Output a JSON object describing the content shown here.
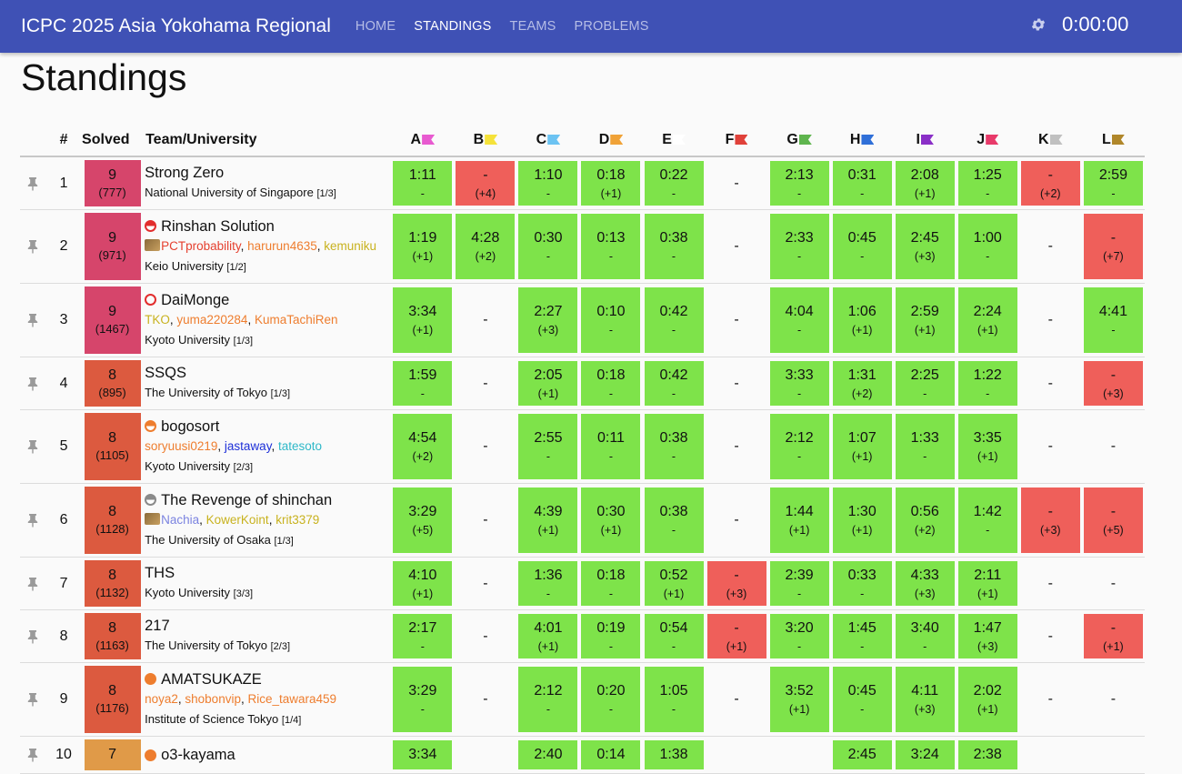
{
  "app": {
    "title": "ICPC 2025 Asia Yokohama Regional",
    "nav": [
      {
        "label": "HOME",
        "active": false
      },
      {
        "label": "STANDINGS",
        "active": true
      },
      {
        "label": "TEAMS",
        "active": false
      },
      {
        "label": "PROBLEMS",
        "active": false
      }
    ],
    "clock": "0:00:00",
    "settings_icon": "gear-icon"
  },
  "page": {
    "title": "Standings"
  },
  "table": {
    "headers": {
      "rank": "#",
      "solved": "Solved",
      "team": "Team/University"
    },
    "problems": [
      {
        "label": "A",
        "color": "#e85ad0"
      },
      {
        "label": "B",
        "color": "#f5e23a"
      },
      {
        "label": "C",
        "color": "#6cc3f2"
      },
      {
        "label": "D",
        "color": "#f0a237"
      },
      {
        "label": "E",
        "color": "#ffffff"
      },
      {
        "label": "F",
        "color": "#e0413a"
      },
      {
        "label": "G",
        "color": "#5fb54e"
      },
      {
        "label": "H",
        "color": "#2f6fd8"
      },
      {
        "label": "I",
        "color": "#8a2fc7"
      },
      {
        "label": "J",
        "color": "#e83a6a"
      },
      {
        "label": "K",
        "color": "#c0c0c0"
      },
      {
        "label": "L",
        "color": "#b0872a"
      }
    ],
    "pin_icon": "pushpin-icon",
    "rows": [
      {
        "rank": "1",
        "solved": "9",
        "penalty": "(777)",
        "solved_color": "#d6456b",
        "team": "Strong Zero",
        "dot": null,
        "members": [],
        "university": "National University of Singapore",
        "fraction": "[1/3]",
        "cells": [
          [
            "ac",
            "1:11",
            "-"
          ],
          [
            "wa",
            "-",
            "(+4)"
          ],
          [
            "ac",
            "1:10",
            "-"
          ],
          [
            "ac",
            "0:18",
            "(+1)"
          ],
          [
            "ac",
            "0:22",
            "-"
          ],
          [
            "none",
            "-",
            ""
          ],
          [
            "ac",
            "2:13",
            "-"
          ],
          [
            "ac",
            "0:31",
            "-"
          ],
          [
            "ac",
            "2:08",
            "(+1)"
          ],
          [
            "ac",
            "1:25",
            "-"
          ],
          [
            "wa",
            "-",
            "(+2)"
          ],
          [
            "ac",
            "2:59",
            "-"
          ]
        ]
      },
      {
        "rank": "2",
        "solved": "9",
        "penalty": "(971)",
        "solved_color": "#d6456b",
        "team": "Rinshan Solution",
        "dot": {
          "kind": "half",
          "color": "#e22d2d"
        },
        "members_icon": "team-badge-icon",
        "members": [
          {
            "name": "PCTprobability",
            "color": "#e5402f"
          },
          {
            "name": "harurun4635",
            "color": "#ee7d2e"
          },
          {
            "name": "kemuniku",
            "color": "#c8b21e"
          }
        ],
        "university": "Keio University",
        "fraction": "[1/2]",
        "cells": [
          [
            "ac",
            "1:19",
            "(+1)"
          ],
          [
            "ac",
            "4:28",
            "(+2)"
          ],
          [
            "ac",
            "0:30",
            "-"
          ],
          [
            "ac",
            "0:13",
            "-"
          ],
          [
            "ac",
            "0:38",
            "-"
          ],
          [
            "none",
            "-",
            ""
          ],
          [
            "ac",
            "2:33",
            "-"
          ],
          [
            "ac",
            "0:45",
            "-"
          ],
          [
            "ac",
            "2:45",
            "(+3)"
          ],
          [
            "ac",
            "1:00",
            "-"
          ],
          [
            "none",
            "-",
            ""
          ],
          [
            "wa",
            "-",
            "(+7)"
          ]
        ]
      },
      {
        "rank": "3",
        "solved": "9",
        "penalty": "(1467)",
        "solved_color": "#d6456b",
        "team": "DaiMonge",
        "dot": {
          "kind": "ring",
          "color": "#e22d2d"
        },
        "members": [
          {
            "name": "TKO",
            "color": "#c8b21e"
          },
          {
            "name": "yuma220284",
            "color": "#ee7d2e"
          },
          {
            "name": "KumaTachiRen",
            "color": "#ee7d2e"
          }
        ],
        "university": "Kyoto University",
        "fraction": "[1/3]",
        "cells": [
          [
            "ac",
            "3:34",
            "(+1)"
          ],
          [
            "none",
            "-",
            ""
          ],
          [
            "ac",
            "2:27",
            "(+3)"
          ],
          [
            "ac",
            "0:10",
            "-"
          ],
          [
            "ac",
            "0:42",
            "-"
          ],
          [
            "none",
            "-",
            ""
          ],
          [
            "ac",
            "4:04",
            "-"
          ],
          [
            "ac",
            "1:06",
            "(+1)"
          ],
          [
            "ac",
            "2:59",
            "(+1)"
          ],
          [
            "ac",
            "2:24",
            "(+1)"
          ],
          [
            "none",
            "-",
            ""
          ],
          [
            "ac",
            "4:41",
            "-"
          ]
        ]
      },
      {
        "rank": "4",
        "solved": "8",
        "penalty": "(895)",
        "solved_color": "#dc5a3f",
        "team": "SSQS",
        "dot": null,
        "members": [],
        "university": "The University of Tokyo",
        "fraction": "[1/3]",
        "cells": [
          [
            "ac",
            "1:59",
            "-"
          ],
          [
            "none",
            "-",
            ""
          ],
          [
            "ac",
            "2:05",
            "(+1)"
          ],
          [
            "ac",
            "0:18",
            "-"
          ],
          [
            "ac",
            "0:42",
            "-"
          ],
          [
            "none",
            "-",
            ""
          ],
          [
            "ac",
            "3:33",
            "-"
          ],
          [
            "ac",
            "1:31",
            "(+2)"
          ],
          [
            "ac",
            "2:25",
            "-"
          ],
          [
            "ac",
            "1:22",
            "-"
          ],
          [
            "none",
            "-",
            ""
          ],
          [
            "wa",
            "-",
            "(+3)"
          ]
        ]
      },
      {
        "rank": "5",
        "solved": "8",
        "penalty": "(1105)",
        "solved_color": "#dc5a3f",
        "team": "bogosort",
        "dot": {
          "kind": "half",
          "color": "#ee7d2e"
        },
        "members": [
          {
            "name": "soryuusi0219",
            "color": "#ee7d2e"
          },
          {
            "name": "jastaway",
            "color": "#1d2fd8"
          },
          {
            "name": "tatesoto",
            "color": "#2eb8c8"
          }
        ],
        "university": "Kyoto University",
        "fraction": "[2/3]",
        "cells": [
          [
            "ac",
            "4:54",
            "(+2)"
          ],
          [
            "none",
            "-",
            ""
          ],
          [
            "ac",
            "2:55",
            "-"
          ],
          [
            "ac",
            "0:11",
            "-"
          ],
          [
            "ac",
            "0:38",
            "-"
          ],
          [
            "none",
            "-",
            ""
          ],
          [
            "ac",
            "2:12",
            "-"
          ],
          [
            "ac",
            "1:07",
            "(+1)"
          ],
          [
            "ac",
            "1:33",
            "-"
          ],
          [
            "ac",
            "3:35",
            "(+1)"
          ],
          [
            "none",
            "-",
            ""
          ],
          [
            "none",
            "-",
            ""
          ]
        ]
      },
      {
        "rank": "6",
        "solved": "8",
        "penalty": "(1128)",
        "solved_color": "#dc5a3f",
        "team": "The Revenge of shinchan",
        "dot": {
          "kind": "half",
          "color": "#8a8a8a"
        },
        "members_icon": "team-badge-icon",
        "members": [
          {
            "name": "Nachia",
            "color": "#7b83e0"
          },
          {
            "name": "KowerKoint",
            "color": "#c8b21e"
          },
          {
            "name": "krit3379",
            "color": "#c8b21e"
          }
        ],
        "university": "The University of Osaka",
        "fraction": "[1/3]",
        "cells": [
          [
            "ac",
            "3:29",
            "(+5)"
          ],
          [
            "none",
            "-",
            ""
          ],
          [
            "ac",
            "4:39",
            "(+1)"
          ],
          [
            "ac",
            "0:30",
            "(+1)"
          ],
          [
            "ac",
            "0:38",
            "-"
          ],
          [
            "none",
            "-",
            ""
          ],
          [
            "ac",
            "1:44",
            "(+1)"
          ],
          [
            "ac",
            "1:30",
            "(+1)"
          ],
          [
            "ac",
            "0:56",
            "(+2)"
          ],
          [
            "ac",
            "1:42",
            "-"
          ],
          [
            "wa",
            "-",
            "(+3)"
          ],
          [
            "wa",
            "-",
            "(+5)"
          ]
        ]
      },
      {
        "rank": "7",
        "solved": "8",
        "penalty": "(1132)",
        "solved_color": "#dc5a3f",
        "team": "THS",
        "dot": null,
        "members": [],
        "university": "Kyoto University",
        "fraction": "[3/3]",
        "cells": [
          [
            "ac",
            "4:10",
            "(+1)"
          ],
          [
            "none",
            "-",
            ""
          ],
          [
            "ac",
            "1:36",
            "-"
          ],
          [
            "ac",
            "0:18",
            "-"
          ],
          [
            "ac",
            "0:52",
            "(+1)"
          ],
          [
            "wa",
            "-",
            "(+3)"
          ],
          [
            "ac",
            "2:39",
            "-"
          ],
          [
            "ac",
            "0:33",
            "-"
          ],
          [
            "ac",
            "4:33",
            "(+3)"
          ],
          [
            "ac",
            "2:11",
            "(+1)"
          ],
          [
            "none",
            "-",
            ""
          ],
          [
            "none",
            "-",
            ""
          ]
        ]
      },
      {
        "rank": "8",
        "solved": "8",
        "penalty": "(1163)",
        "solved_color": "#dc5a3f",
        "team": "217",
        "dot": null,
        "members": [],
        "university": "The University of Tokyo",
        "fraction": "[2/3]",
        "cells": [
          [
            "ac",
            "2:17",
            "-"
          ],
          [
            "none",
            "-",
            ""
          ],
          [
            "ac",
            "4:01",
            "(+1)"
          ],
          [
            "ac",
            "0:19",
            "-"
          ],
          [
            "ac",
            "0:54",
            "-"
          ],
          [
            "wa",
            "-",
            "(+1)"
          ],
          [
            "ac",
            "3:20",
            "-"
          ],
          [
            "ac",
            "1:45",
            "-"
          ],
          [
            "ac",
            "3:40",
            "-"
          ],
          [
            "ac",
            "1:47",
            "(+3)"
          ],
          [
            "none",
            "-",
            ""
          ],
          [
            "wa",
            "-",
            "(+1)"
          ]
        ]
      },
      {
        "rank": "9",
        "solved": "8",
        "penalty": "(1176)",
        "solved_color": "#dc5a3f",
        "team": "AMATSUKAZE",
        "dot": {
          "kind": "full",
          "color": "#ee7d2e"
        },
        "members": [
          {
            "name": "noya2",
            "color": "#ee7d2e"
          },
          {
            "name": "shobonvip",
            "color": "#ee7d2e"
          },
          {
            "name": "Rice_tawara459",
            "color": "#ee7d2e"
          }
        ],
        "university": "Institute of Science Tokyo",
        "fraction": "[1/4]",
        "cells": [
          [
            "ac",
            "3:29",
            "-"
          ],
          [
            "none",
            "-",
            ""
          ],
          [
            "ac",
            "2:12",
            "-"
          ],
          [
            "ac",
            "0:20",
            "-"
          ],
          [
            "ac",
            "1:05",
            "-"
          ],
          [
            "none",
            "-",
            ""
          ],
          [
            "ac",
            "3:52",
            "(+1)"
          ],
          [
            "ac",
            "0:45",
            "-"
          ],
          [
            "ac",
            "4:11",
            "(+3)"
          ],
          [
            "ac",
            "2:02",
            "(+1)"
          ],
          [
            "none",
            "-",
            ""
          ],
          [
            "none",
            "-",
            ""
          ]
        ]
      },
      {
        "rank": "10",
        "solved": "7",
        "penalty": "",
        "solved_color": "#e09a48",
        "team": "o3-kayama",
        "dot": {
          "kind": "full",
          "color": "#ee7d2e"
        },
        "members": [],
        "university": "",
        "fraction": "",
        "cells": [
          [
            "ac",
            "3:34",
            ""
          ],
          [
            "none",
            "",
            ""
          ],
          [
            "ac",
            "2:40",
            ""
          ],
          [
            "ac",
            "0:14",
            ""
          ],
          [
            "ac",
            "1:38",
            ""
          ],
          [
            "none",
            "",
            ""
          ],
          [
            "none",
            "",
            ""
          ],
          [
            "ac",
            "2:45",
            ""
          ],
          [
            "ac",
            "3:24",
            ""
          ],
          [
            "ac",
            "2:38",
            ""
          ],
          [
            "none",
            "",
            ""
          ],
          [
            "none",
            "",
            ""
          ]
        ]
      }
    ]
  }
}
